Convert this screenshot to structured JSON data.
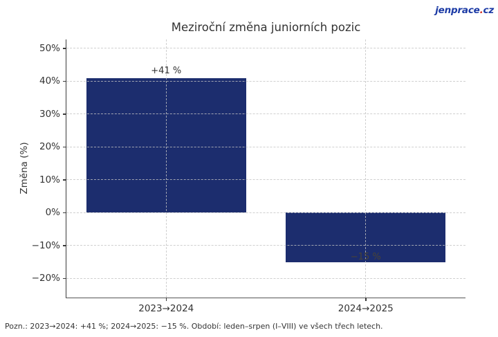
{
  "logo": {
    "main": "jenprace",
    "dot": ".",
    "tld": "cz"
  },
  "colors": {
    "bar": "#1c2d6e",
    "grid": "#c4c4c4",
    "spine": "#3a3a3a",
    "text": "#333333",
    "neg_label": "#4a4435",
    "logo_blue": "#1b3aa5",
    "logo_red": "#d42b1e",
    "background": "#ffffff"
  },
  "chart_data": {
    "type": "bar",
    "title": "Meziroční změna juniorních pozic",
    "ylabel": "Změna (%)",
    "xlabel": "",
    "categories": [
      "2023→2024",
      "2024→2025"
    ],
    "values": [
      41,
      -15
    ],
    "bar_labels": [
      "+41 %",
      "−15 %"
    ],
    "ytick_values": [
      50,
      40,
      30,
      20,
      10,
      0,
      -10,
      -20
    ],
    "ytick_labels": [
      "50%",
      "40%",
      "30%",
      "20%",
      "10%",
      "0%",
      "−10%",
      "−20%"
    ],
    "ylim": [
      -25.8,
      52.7
    ],
    "xlim": [
      -0.5,
      1.5
    ],
    "category_positions": [
      0,
      1
    ],
    "bar_width_units": 0.8,
    "grid": true,
    "grid_style": "dashed",
    "legend": "none",
    "footnote": "Pozn.: 2023→2024: +41 %; 2024→2025: −15 %. Období: leden–srpen (I–VIII) ve všech třech letech."
  }
}
